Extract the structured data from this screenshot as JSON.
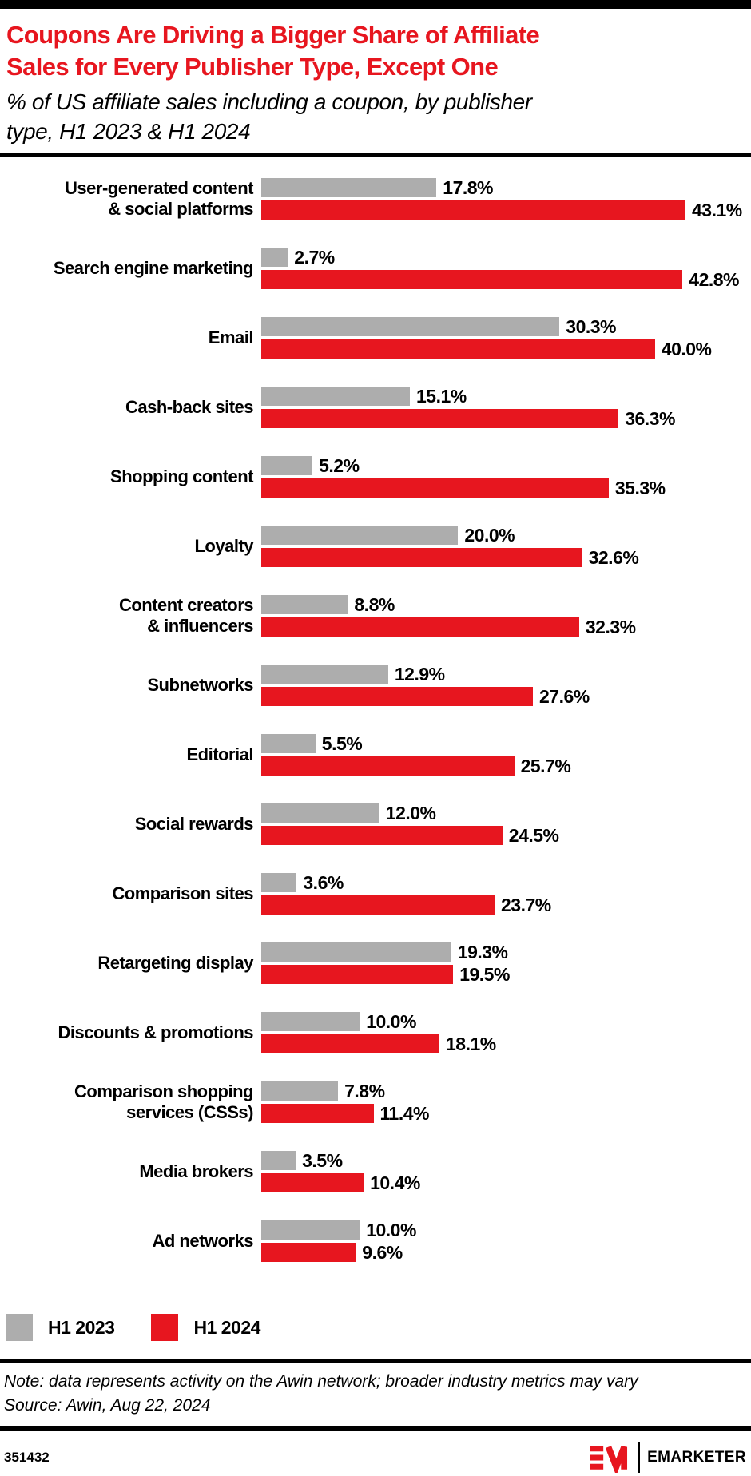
{
  "chart_data": {
    "type": "bar",
    "orientation": "horizontal",
    "title": "Coupons Are Driving a Bigger Share of Affiliate\nSales for Every Publisher Type, Except One",
    "subtitle": "% of US affiliate sales including a coupon, by publisher\ntype, H1 2023 & H1 2024",
    "categories": [
      "User-generated content\n& social platforms",
      "Search engine marketing",
      "Email",
      "Cash-back sites",
      "Shopping content",
      "Loyalty",
      "Content creators\n& influencers",
      "Subnetworks",
      "Editorial",
      "Social rewards",
      "Comparison sites",
      "Retargeting display",
      "Discounts & promotions",
      "Comparison shopping\nservices (CSSs)",
      "Media brokers",
      "Ad networks"
    ],
    "series": [
      {
        "name": "H1 2023",
        "color": "#adadad",
        "values": [
          17.8,
          2.7,
          30.3,
          15.1,
          5.2,
          20.0,
          8.8,
          12.9,
          5.5,
          12.0,
          3.6,
          19.3,
          10.0,
          7.8,
          3.5,
          10.0
        ]
      },
      {
        "name": "H1 2024",
        "color": "#e7161f",
        "values": [
          43.1,
          42.8,
          40.0,
          36.3,
          35.3,
          32.6,
          32.3,
          27.6,
          25.7,
          24.5,
          23.7,
          19.5,
          18.1,
          11.4,
          10.4,
          9.6
        ]
      }
    ],
    "value_suffix": "%",
    "value_decimals": 1,
    "xmax": 43.1,
    "grid": false,
    "legend_position": "bottom-left"
  },
  "footer": {
    "note": "Note: data represents activity on the Awin network; broader industry metrics may vary",
    "source": "Source: Awin, Aug 22, 2024",
    "chart_id": "351432",
    "brand": "EMARKETER"
  },
  "colors": {
    "accent_red": "#e7161f",
    "bar_gray": "#adadad",
    "text": "#000000",
    "background": "#ffffff"
  }
}
